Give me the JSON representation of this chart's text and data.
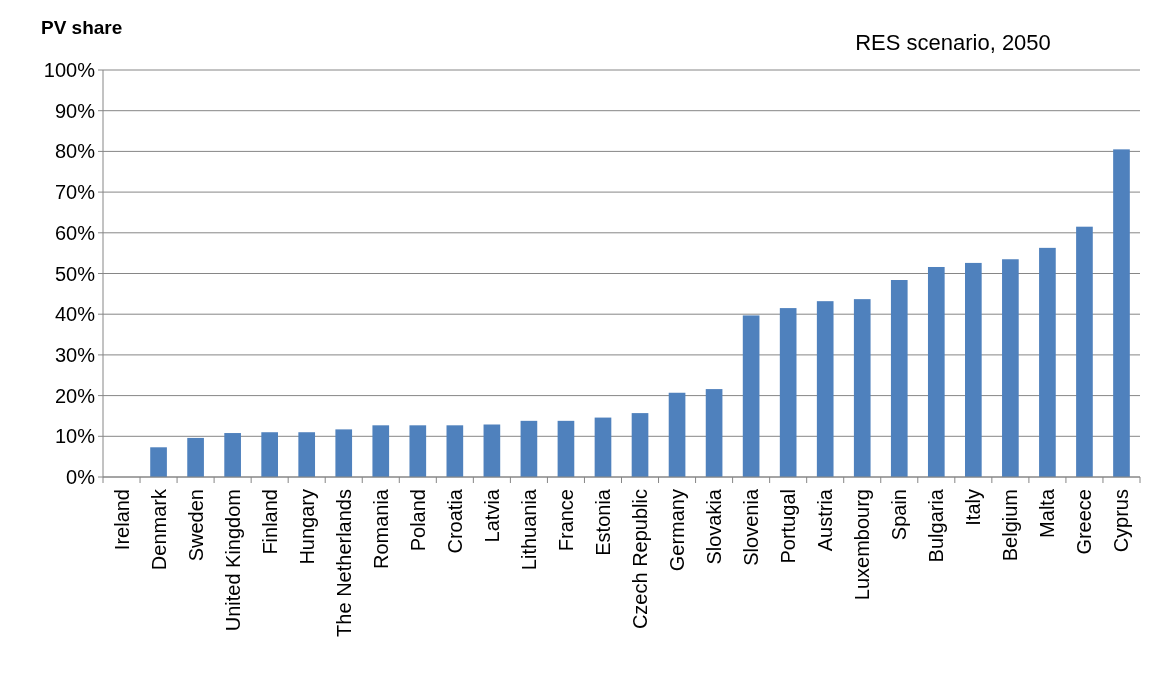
{
  "chart_data": {
    "type": "bar",
    "title": "RES scenario, 2050",
    "ylabel": "PV share",
    "categories": [
      "Ireland",
      "Denmark",
      "Sweden",
      "United Kingdom",
      "Finland",
      "Hungary",
      "The Netherlands",
      "Romania",
      "Poland",
      "Croatia",
      "Latvia",
      "Lithuania",
      "France",
      "Estonia",
      "Czech Republic",
      "Germany",
      "Slovakia",
      "Slovenia",
      "Portugal",
      "Austria",
      "Luxembourg",
      "Spain",
      "Bulgaria",
      "Italy",
      "Belgium",
      "Malta",
      "Greece",
      "Cyprus"
    ],
    "values": [
      0,
      7.3,
      9.6,
      10.8,
      11,
      11,
      11.7,
      12.7,
      12.7,
      12.7,
      12.9,
      13.8,
      13.8,
      14.6,
      15.7,
      20.7,
      21.6,
      39.7,
      41.5,
      43.2,
      43.7,
      48.4,
      51.6,
      52.6,
      53.5,
      56.3,
      61.5,
      80.5
    ],
    "color": "#4f81bd",
    "ylim": [
      0,
      100
    ],
    "yticks": [
      {
        "value": 0,
        "label": "0%"
      },
      {
        "value": 10,
        "label": "10%"
      },
      {
        "value": 20,
        "label": "20%"
      },
      {
        "value": 30,
        "label": "30%"
      },
      {
        "value": 40,
        "label": "40%"
      },
      {
        "value": 50,
        "label": "50%"
      },
      {
        "value": 60,
        "label": "60%"
      },
      {
        "value": 70,
        "label": "70%"
      },
      {
        "value": 80,
        "label": "80%"
      },
      {
        "value": 90,
        "label": "90%"
      },
      {
        "value": 100,
        "label": "100%"
      }
    ],
    "grid": "y"
  }
}
